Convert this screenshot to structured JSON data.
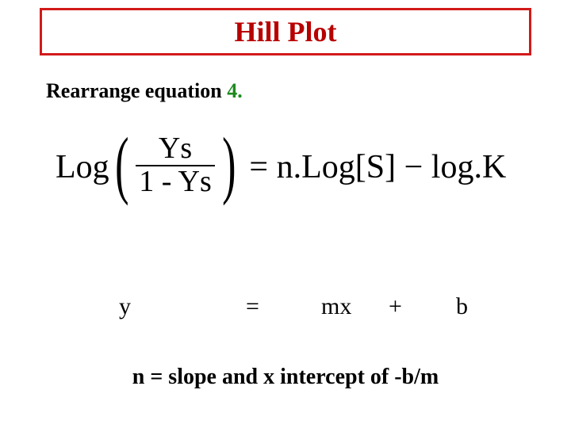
{
  "colors": {
    "title_border": "#d21a1a",
    "title_text": "#b80000",
    "body_text": "#000000",
    "accent_green": "#1e8a1e"
  },
  "title": "Hill Plot",
  "rearrange": {
    "prefix": "Rearrange equation ",
    "number": "4."
  },
  "equation": {
    "log_label": "Log",
    "lparen": "(",
    "numerator": "Ys",
    "denominator": "1 - Ys",
    "rparen": ")",
    "rhs": "= n.Log[S] − log.K"
  },
  "linear": {
    "y": "y",
    "eq": "=",
    "mx": "mx",
    "plus": "+",
    "b": "b"
  },
  "footer": "n = slope and x intercept of -b/m"
}
